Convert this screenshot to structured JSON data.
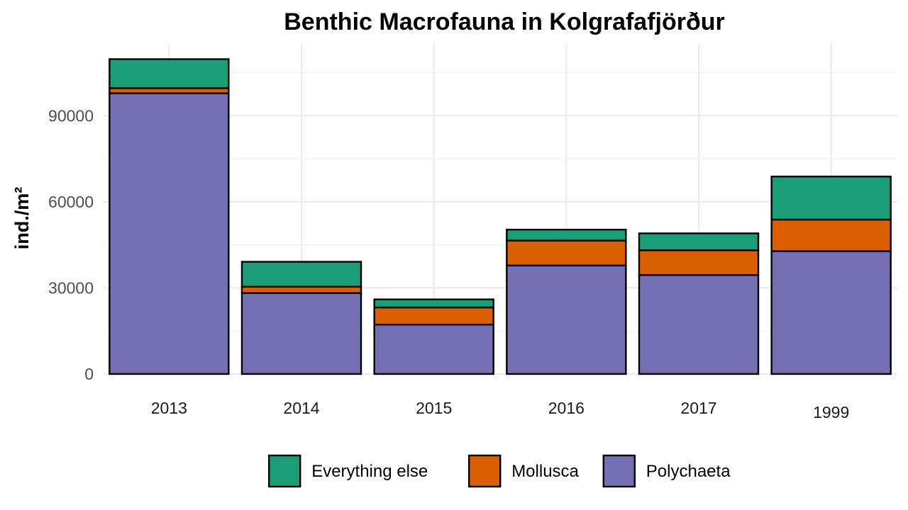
{
  "chart_data": {
    "type": "bar",
    "stacked": true,
    "title": "Benthic Macrofauna in Kolgrafafjörður",
    "xlabel": "",
    "ylabel": "ind./m²",
    "categories": [
      "2013",
      "2014",
      "2015",
      "2016",
      "2017",
      "1999"
    ],
    "highlight_category": "1999",
    "highlight_color": "#ff0000",
    "ylim": [
      0,
      115000
    ],
    "yticks": [
      0,
      30000,
      60000,
      90000
    ],
    "grid": true,
    "legend_position": "bottom",
    "series": [
      {
        "name": "Polychaeta",
        "color": "#7570b3",
        "values": [
          97800,
          28200,
          17200,
          37800,
          34500,
          42800
        ]
      },
      {
        "name": "Mollusca",
        "color": "#d95f02",
        "values": [
          1800,
          2200,
          6000,
          8700,
          8600,
          11000
        ]
      },
      {
        "name": "Everything else",
        "color": "#1b9e77",
        "values": [
          10100,
          8700,
          2800,
          3800,
          5900,
          15000
        ]
      }
    ],
    "legend_order": [
      "Everything else",
      "Mollusca",
      "Polychaeta"
    ]
  }
}
